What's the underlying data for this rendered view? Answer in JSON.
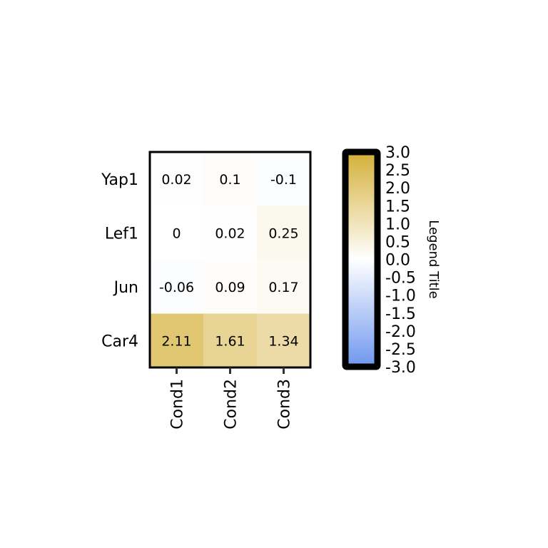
{
  "chart_data": {
    "type": "heatmap",
    "rows": [
      "Yap1",
      "Lef1",
      "Jun",
      "Car4"
    ],
    "columns": [
      "Cond1",
      "Cond2",
      "Cond3"
    ],
    "values": [
      [
        0.02,
        0.1,
        -0.1
      ],
      [
        0,
        0.02,
        0.25
      ],
      [
        -0.06,
        0.09,
        0.17
      ],
      [
        2.11,
        1.61,
        1.34
      ]
    ],
    "value_labels": [
      [
        "0.02",
        "0.1",
        "-0.1"
      ],
      [
        "0",
        "0.02",
        "0.25"
      ],
      [
        "-0.06",
        "0.09",
        "0.17"
      ],
      [
        "2.11",
        "1.61",
        "1.34"
      ]
    ],
    "color_scale": {
      "min": -3.0,
      "max": 3.0,
      "low_color": "#6f97ef",
      "mid_color": "#ffffff",
      "high_color": "#d4af37"
    },
    "legend": {
      "title": "Legend Title",
      "ticks": [
        "3.0",
        "2.5",
        "2.0",
        "1.5",
        "1.0",
        "0.5",
        "0.0",
        "-0.5",
        "-1.0",
        "-1.5",
        "-2.0",
        "-2.5",
        "-3.0"
      ],
      "tick_values": [
        3.0,
        2.5,
        2.0,
        1.5,
        1.0,
        0.5,
        0.0,
        -0.5,
        -1.0,
        -1.5,
        -2.0,
        -2.5,
        -3.0
      ],
      "placement": "right"
    }
  }
}
